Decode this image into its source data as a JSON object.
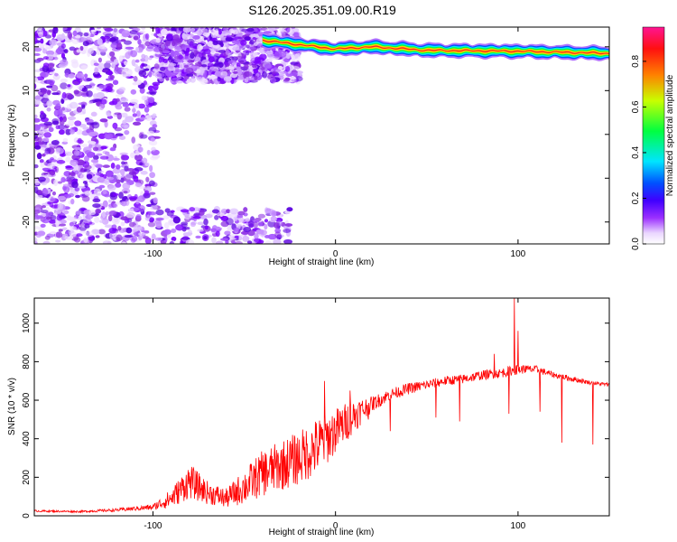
{
  "figure_title": "S126.2025.351.09.00.R19",
  "chart_data": [
    {
      "type": "heatmap",
      "title": "S126.2025.351.09.00.R19",
      "xlabel": "Height of straight line (km)",
      "ylabel": "Frequency (Hz)",
      "xlim": [
        -165,
        150
      ],
      "ylim": [
        -25,
        24.5
      ],
      "x_ticks": [
        -100,
        0,
        100
      ],
      "y_ticks": [
        -20,
        -10,
        0,
        10,
        20
      ],
      "colorbar": {
        "label": "Normalized spectral amplitude",
        "range": [
          0,
          0.95
        ],
        "ticks": [
          "0.0",
          "0.2",
          "0.4",
          "0.6",
          "0.8"
        ],
        "colors": [
          "#ffffff",
          "#e6ccff",
          "#8000ff",
          "#0000ff",
          "#00e5ff",
          "#00ff40",
          "#d0ff00",
          "#ff8000",
          "#ff0000",
          "#ff1493"
        ]
      },
      "ridge": {
        "description": "strong narrow-band signal",
        "points": [
          [
            -40,
            21.5
          ],
          [
            -20,
            20.5
          ],
          [
            0,
            19.5
          ],
          [
            20,
            20
          ],
          [
            50,
            19.2
          ],
          [
            100,
            19
          ],
          [
            150,
            18.5
          ]
        ],
        "band_halfwidth_hz": 1.2
      },
      "noise_regions": [
        {
          "x": [
            -165,
            -98
          ],
          "y": [
            -25,
            24.5
          ],
          "density": "dense"
        },
        {
          "x": [
            -98,
            -20
          ],
          "y": [
            12,
            24.5
          ],
          "density": "dense"
        },
        {
          "x": [
            -98,
            -25
          ],
          "y": [
            -25,
            -17
          ],
          "density": "sparse"
        }
      ]
    },
    {
      "type": "line",
      "xlabel": "Height of straight line (km)",
      "ylabel": "SNR (10 * v/v)",
      "xlim": [
        -165,
        150
      ],
      "ylim": [
        0,
        1130
      ],
      "x_ticks": [
        -100,
        0,
        100
      ],
      "y_ticks": [
        0,
        200,
        400,
        600,
        800,
        1000
      ],
      "series": [
        {
          "name": "SNR",
          "color": "#ff0000",
          "x": [
            -165,
            -140,
            -120,
            -100,
            -90,
            -80,
            -70,
            -60,
            -50,
            -40,
            -30,
            -20,
            -10,
            0,
            10,
            20,
            30,
            40,
            50,
            60,
            70,
            80,
            90,
            100,
            110,
            120,
            130,
            140,
            150
          ],
          "y": [
            25,
            22,
            30,
            45,
            90,
            180,
            120,
            90,
            150,
            220,
            260,
            300,
            360,
            440,
            520,
            580,
            630,
            660,
            680,
            700,
            710,
            730,
            740,
            760,
            760,
            730,
            710,
            690,
            680
          ],
          "noise_amplitude": [
            5,
            5,
            8,
            15,
            50,
            90,
            60,
            50,
            90,
            120,
            130,
            140,
            150,
            120,
            90,
            40,
            30,
            30,
            25,
            25,
            25,
            25,
            25,
            25,
            20,
            15,
            15,
            10,
            10
          ],
          "spikes_down": [
            [
              18,
              500
            ],
            [
              30,
              440
            ],
            [
              55,
              510
            ],
            [
              68,
              490
            ],
            [
              95,
              530
            ],
            [
              98,
              480
            ],
            [
              112,
              540
            ],
            [
              124,
              380
            ],
            [
              141,
              370
            ]
          ],
          "spikes_up": [
            [
              -6,
              700
            ],
            [
              8,
              650
            ],
            [
              87,
              840
            ],
            [
              98,
              1130
            ],
            [
              100,
              960
            ],
            [
              104,
              780
            ]
          ]
        }
      ]
    }
  ]
}
